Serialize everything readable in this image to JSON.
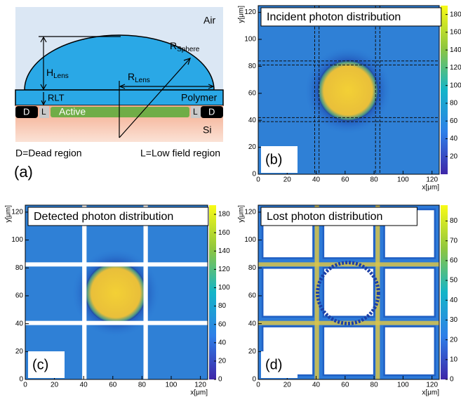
{
  "diagram": {
    "label": "(a)",
    "air": "Air",
    "h_lens": {
      "main": "H",
      "sub": "Lens"
    },
    "rlt": "RLT",
    "r_lens": {
      "main": "R",
      "sub": "Lens"
    },
    "r_sphere": {
      "main": "R",
      "sub": "Sphere"
    },
    "polymer": "Polymer",
    "active": "Active",
    "dead": "D",
    "low": "L",
    "si": "Si",
    "legend_dead": "D=Dead region",
    "legend_low": "L=Low field region"
  },
  "panels": [
    {
      "label": "(b)",
      "title": "Incident photon distribution",
      "x_label": "x[μm]",
      "y_label": "y[μm]",
      "x_range": [
        0,
        125
      ],
      "y_range": [
        0,
        125
      ],
      "x_ticks": [
        0,
        20,
        40,
        60,
        80,
        100,
        120
      ],
      "y_ticks": [
        0,
        20,
        40,
        60,
        80,
        100,
        120
      ],
      "colorbar_range": [
        0,
        190
      ],
      "colorbar_ticks": [
        20,
        40,
        60,
        80,
        100,
        120,
        140,
        160,
        180
      ]
    },
    {
      "label": "(c)",
      "title": "Detected photon distribution",
      "x_label": "x[μm]",
      "y_label": "y[μm]",
      "x_range": [
        0,
        125
      ],
      "y_range": [
        0,
        125
      ],
      "x_ticks": [
        0,
        20,
        40,
        60,
        80,
        100,
        120
      ],
      "y_ticks": [
        0,
        20,
        40,
        60,
        80,
        100,
        120
      ],
      "colorbar_range": [
        0,
        190
      ],
      "colorbar_ticks": [
        0,
        20,
        40,
        60,
        80,
        100,
        120,
        140,
        160,
        180
      ]
    },
    {
      "label": "(d)",
      "title": "Lost photon distribution",
      "x_label": "x[μm]",
      "y_label": "y[μm]",
      "x_range": [
        0,
        125
      ],
      "y_range": [
        0,
        125
      ],
      "x_ticks": [
        0,
        20,
        40,
        60,
        80,
        100,
        120
      ],
      "y_ticks": [
        0,
        20,
        40,
        60,
        80,
        100,
        120
      ],
      "colorbar_range": [
        0,
        88
      ],
      "colorbar_ticks": [
        0,
        10,
        20,
        30,
        40,
        50,
        60,
        70,
        80
      ]
    }
  ]
}
